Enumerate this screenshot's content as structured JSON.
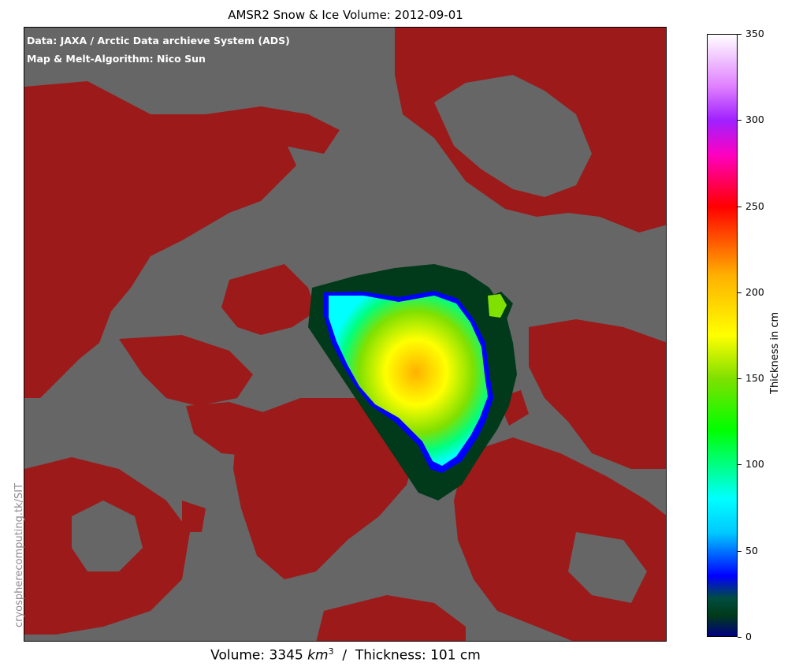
{
  "title": "AMSR2 Snow & Ice Volume: 2012-09-01",
  "credits": {
    "line1": "Data: JAXA / Arctic Data archieve System (ADS)",
    "line2": "Map & Melt-Algorithm: Nico Sun"
  },
  "watermark": "cryospherecomputing.tk/SIT",
  "footer": {
    "volume_label": "Volume: 3345 ",
    "volume_unit": "km",
    "volume_exp": "3",
    "thickness_label": "  /  Thickness: 101 cm"
  },
  "colorbar": {
    "label": "Thickness in cm",
    "min": 0,
    "max": 350,
    "ticks": [
      "0",
      "50",
      "100",
      "150",
      "200",
      "250",
      "300",
      "350"
    ],
    "stops": [
      {
        "v": 0,
        "color": "#000080"
      },
      {
        "v": 12,
        "color": "#003a1a"
      },
      {
        "v": 22,
        "color": "#004d40"
      },
      {
        "v": 35,
        "color": "#0000ff"
      },
      {
        "v": 60,
        "color": "#00c8ff"
      },
      {
        "v": 80,
        "color": "#00ffff"
      },
      {
        "v": 100,
        "color": "#00ff80"
      },
      {
        "v": 120,
        "color": "#00ff00"
      },
      {
        "v": 150,
        "color": "#80e000"
      },
      {
        "v": 175,
        "color": "#ffff00"
      },
      {
        "v": 210,
        "color": "#ffb000"
      },
      {
        "v": 250,
        "color": "#ff0000"
      },
      {
        "v": 280,
        "color": "#ff00c0"
      },
      {
        "v": 300,
        "color": "#a020ff"
      },
      {
        "v": 320,
        "color": "#e080ff"
      },
      {
        "v": 350,
        "color": "#ffffff"
      }
    ]
  },
  "map_colors": {
    "ocean": "#666666",
    "land": "#9c1a1a"
  }
}
